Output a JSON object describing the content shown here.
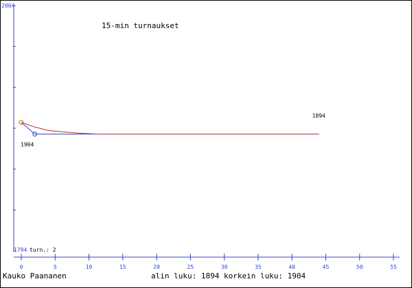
{
  "chart_data": {
    "type": "line",
    "title": "15-min turnaukset",
    "y_top_label": "2004",
    "y_bottom_label": "1794",
    "turn_label": "turn.: 2",
    "x_ticks": [
      "0",
      "5",
      "10",
      "15",
      "20",
      "25",
      "30",
      "35",
      "40",
      "45",
      "50",
      "55"
    ],
    "xlim": [
      0,
      55
    ],
    "ylim": [
      1794,
      2004
    ],
    "series": [
      {
        "color": "#b03030",
        "marker_color": "#cc6600",
        "x": [
          0,
          2,
          4,
          6,
          8,
          11,
          44
        ],
        "y": [
          1904,
          1900,
          1897,
          1896,
          1895,
          1894,
          1894
        ]
      },
      {
        "color": "#3344cc",
        "marker_color": "#3344cc",
        "x": [
          0,
          2,
          11
        ],
        "y": [
          1904,
          1894,
          1894
        ]
      }
    ],
    "point_labels": [
      {
        "text": "1904",
        "x": 0,
        "y": 1904
      },
      {
        "text": "1894",
        "x": 44,
        "y": 1894
      }
    ],
    "footer": {
      "author": "Kauko Paananen",
      "stats": "alin luku: 1894  korkein luku: 1904"
    },
    "colors": {
      "axis": "#3344cc",
      "frame": "#000000",
      "text": "#000000",
      "label_blue": "#3344cc"
    }
  }
}
